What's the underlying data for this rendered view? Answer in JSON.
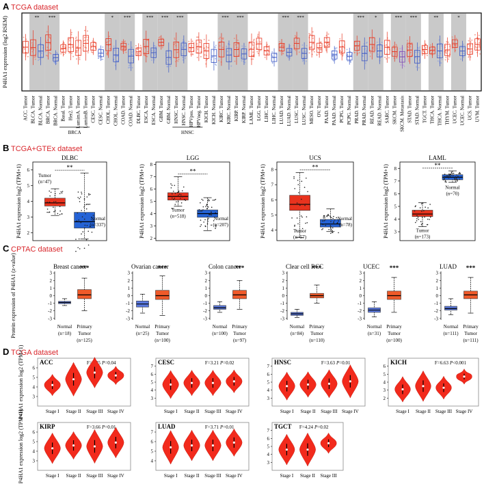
{
  "section_a": {
    "letter": "A",
    "title": "TCGA dataset",
    "ylabel": "P4HA1 expression (log2 RSEM)",
    "groups": [
      {
        "label": "ACC. Tumor",
        "color": "red"
      },
      {
        "label": "BLCA. Tumor",
        "color": "red",
        "sig": "**"
      },
      {
        "label": "BLCA. Normal",
        "color": "blue"
      },
      {
        "label": "BRCA. Tumor",
        "color": "red",
        "sig": "***"
      },
      {
        "label": "BRCA. Normal",
        "color": "blue"
      },
      {
        "label": "Basal. Tumor",
        "color": "red"
      },
      {
        "label": "Her2. Tumor",
        "color": "red"
      },
      {
        "label": "LumimA. Tumor",
        "color": "red"
      },
      {
        "label": "LumimB. Tumor",
        "color": "red"
      },
      {
        "label": "CESC. Tumor",
        "color": "red"
      },
      {
        "label": "CESC. Normal",
        "color": "blue"
      },
      {
        "label": "CHOL. Tumor",
        "color": "red",
        "sig": "*"
      },
      {
        "label": "CHOL. Normal",
        "color": "blue"
      },
      {
        "label": "COAD. Tumor",
        "color": "red",
        "sig": "***"
      },
      {
        "label": "COAD. Normal",
        "color": "blue"
      },
      {
        "label": "DLBC. Tumor",
        "color": "red"
      },
      {
        "label": "ESCA. Tumor",
        "color": "red",
        "sig": "***"
      },
      {
        "label": "ESCA. Normal",
        "color": "blue"
      },
      {
        "label": "GBM. Tumor",
        "color": "red",
        "sig": "***"
      },
      {
        "label": "GBM. Normal",
        "color": "blue"
      },
      {
        "label": "HNSC. Tumor",
        "color": "red",
        "sig": "***"
      },
      {
        "label": "HNSC. Normal",
        "color": "blue"
      },
      {
        "label": "HPVpos. Tumor",
        "color": "red"
      },
      {
        "label": "HPVneg. Tumor",
        "color": "red"
      },
      {
        "label": "KICH. Tumor",
        "color": "red"
      },
      {
        "label": "KICH. Normal",
        "color": "blue"
      },
      {
        "label": "KIRC. Tumor",
        "color": "red",
        "sig": "***"
      },
      {
        "label": "KIRC. Normal",
        "color": "blue"
      },
      {
        "label": "KIRP. Tumor",
        "color": "red",
        "sig": "***"
      },
      {
        "label": "KIRP. Normal",
        "color": "blue"
      },
      {
        "label": "LAML. Tumor",
        "color": "red"
      },
      {
        "label": "LGG. Tumor",
        "color": "red"
      },
      {
        "label": "LIHC. Tumor",
        "color": "red"
      },
      {
        "label": "LIHC. Normal",
        "color": "blue"
      },
      {
        "label": "LUAD. Tumor",
        "color": "red",
        "sig": "***"
      },
      {
        "label": "LUAD. Normal",
        "color": "blue"
      },
      {
        "label": "LUSC. Tumor",
        "color": "red",
        "sig": "***"
      },
      {
        "label": "LUSC. Normal",
        "color": "blue"
      },
      {
        "label": "MESO. Tumor",
        "color": "red"
      },
      {
        "label": "OV. Tumor",
        "color": "red"
      },
      {
        "label": "PAAD. Tumor",
        "color": "red"
      },
      {
        "label": "PAAD. Normal",
        "color": "blue"
      },
      {
        "label": "PCPG. Tumor",
        "color": "red"
      },
      {
        "label": "PCPG. Normal",
        "color": "blue"
      },
      {
        "label": "PRAD. Tumor",
        "color": "red",
        "sig": "***"
      },
      {
        "label": "PRAD. Normal",
        "color": "blue"
      },
      {
        "label": "READ. Tumor",
        "color": "red",
        "sig": "*"
      },
      {
        "label": "READ. Normal",
        "color": "blue"
      },
      {
        "label": "SARC. Tumor",
        "color": "red"
      },
      {
        "label": "SKCM. Tumor",
        "color": "red",
        "sig": "***"
      },
      {
        "label": "SKCM. Metastasis",
        "color": "purple"
      },
      {
        "label": "STAD. Tumor",
        "color": "red",
        "sig": "***"
      },
      {
        "label": "STAD. Normal",
        "color": "blue"
      },
      {
        "label": "TGCT. Tumor",
        "color": "red"
      },
      {
        "label": "THCA. Tumor",
        "color": "red",
        "sig": "**"
      },
      {
        "label": "THCA. Normal",
        "color": "blue"
      },
      {
        "label": "THYM. Tumor",
        "color": "red"
      },
      {
        "label": "UCEC. Tumor",
        "color": "red",
        "sig": "*"
      },
      {
        "label": "UCEC. Normal",
        "color": "blue"
      },
      {
        "label": "UCS. Tumor",
        "color": "red"
      },
      {
        "label": "UVM. Tumor",
        "color": "red"
      }
    ],
    "subgroup_labels": [
      "BRCA",
      "HNSC"
    ]
  },
  "section_b": {
    "letter": "B",
    "title": "TCGA+GTEx dataset",
    "ylabel": "P4HA1 expression log2 (TPM+1)",
    "panels": [
      {
        "title": "DLBC",
        "ymin": 1.5,
        "ymax": 6.5,
        "ticks": [
          2,
          3,
          4,
          5,
          6
        ],
        "sig": "**",
        "tumor": {
          "label": "Tumor",
          "n": "(n=47)",
          "median": 3.9,
          "q1": 3.7,
          "q3": 4.2,
          "lo": 3.1,
          "hi": 4.8
        },
        "normal": {
          "label": "Normal",
          "n": "(n=337)",
          "median": 2.7,
          "q1": 2.3,
          "q3": 3.3,
          "lo": 1.6,
          "hi": 5.8
        }
      },
      {
        "title": "LGG",
        "ymin": 1.8,
        "ymax": 8.2,
        "ticks": [
          2,
          3,
          4,
          5,
          6,
          7,
          8
        ],
        "sig": "**",
        "tumor": {
          "label": "Tumor",
          "n": "(n=518)",
          "median": 5.4,
          "q1": 5.1,
          "q3": 5.7,
          "lo": 4.6,
          "hi": 7.0
        },
        "normal": {
          "label": "Normal",
          "n": "(n=207)",
          "median": 4.0,
          "q1": 3.7,
          "q3": 4.3,
          "lo": 2.6,
          "hi": 5.3
        }
      },
      {
        "title": "UCS",
        "ymin": 3.3,
        "ymax": 8.5,
        "ticks": [
          4,
          5,
          6,
          7,
          8
        ],
        "sig": "**",
        "tumor": {
          "label": "Tumor",
          "n": "(n=57)",
          "median": 5.7,
          "q1": 5.3,
          "q3": 6.3,
          "lo": 3.5,
          "hi": 7.8
        },
        "normal": {
          "label": "Normal",
          "n": "(n=78)",
          "median": 4.4,
          "q1": 4.2,
          "q3": 4.7,
          "lo": 3.9,
          "hi": 5.4
        }
      },
      {
        "title": "LAML",
        "ymin": 2.3,
        "ymax": 8.5,
        "ticks": [
          3,
          4,
          5,
          6,
          7,
          8
        ],
        "sig": "**",
        "tumor": {
          "label": "Tumor",
          "n": "(n=173)",
          "median": 4.4,
          "q1": 4.2,
          "q3": 4.7,
          "lo": 3.4,
          "hi": 5.3
        },
        "normal": {
          "label": "Normal",
          "n": "(n=70)",
          "median": 7.3,
          "q1": 7.1,
          "q3": 7.5,
          "lo": 6.9,
          "hi": 7.8
        }
      }
    ]
  },
  "section_c": {
    "letter": "C",
    "title": "CPTAC dataset",
    "ylabel": "Protein expression of P4HA1 (z-value)",
    "ymin": -3.2,
    "ymax": 3.2,
    "ticks": [
      -3,
      -2,
      -1,
      0,
      1,
      2,
      3
    ],
    "panels": [
      {
        "title": "Breast cancer",
        "sig": "***",
        "normal": {
          "label": "Normal",
          "n": "(n=18)",
          "median": -0.9,
          "q1": -1.05,
          "q3": -0.75,
          "lo": -1.3,
          "hi": -0.4
        },
        "tumor": {
          "label": "Primary",
          "label2": "Tumor",
          "n": "(n=125)",
          "median": 0.1,
          "q1": -0.4,
          "q3": 0.8,
          "lo": -2.0,
          "hi": 2.3
        }
      },
      {
        "title": "Ovarian cancer",
        "sig": "***",
        "normal": {
          "label": "Normal",
          "n": "(n=25)",
          "median": -1.1,
          "q1": -1.5,
          "q3": -0.7,
          "lo": -2.3,
          "hi": 0.2
        },
        "tumor": {
          "label": "Primary",
          "label2": "Tumor",
          "n": "(n=100)",
          "median": 0.0,
          "q1": -0.5,
          "q3": 0.7,
          "lo": -2.6,
          "hi": 2.6
        }
      },
      {
        "title": "Colon cancer",
        "sig": "***",
        "normal": {
          "label": "Normal",
          "n": "(n=100)",
          "median": -1.6,
          "q1": -1.8,
          "q3": -1.3,
          "lo": -2.2,
          "hi": -0.8
        },
        "tumor": {
          "label": "Primary",
          "label2": "Tumor",
          "n": "(n=97)",
          "median": 0.1,
          "q1": -0.4,
          "q3": 0.7,
          "lo": -1.8,
          "hi": 2.0
        }
      },
      {
        "title": "Clear cell RCC",
        "sig": "***",
        "normal": {
          "label": "Normal",
          "n": "(n=84)",
          "median": -2.4,
          "q1": -2.6,
          "q3": -2.2,
          "lo": -2.9,
          "hi": -1.8
        },
        "tumor": {
          "label": "Primary",
          "label2": "Tumor",
          "n": "(n=110)",
          "median": 0.0,
          "q1": -0.3,
          "q3": 0.3,
          "lo": -1.0,
          "hi": 1.4
        }
      },
      {
        "title": "UCEC",
        "sig": "***",
        "normal": {
          "label": "Normal",
          "n": "(n=31)",
          "median": -1.9,
          "q1": -2.2,
          "q3": -1.6,
          "lo": -2.8,
          "hi": -0.8
        },
        "tumor": {
          "label": "Primary",
          "label2": "Tumor",
          "n": "(n=100)",
          "median": 0.0,
          "q1": -0.5,
          "q3": 0.6,
          "lo": -2.2,
          "hi": 2.4
        }
      },
      {
        "title": "LUAD",
        "sig": "***",
        "normal": {
          "label": "Normal",
          "n": "(n=111)",
          "median": -1.7,
          "q1": -1.9,
          "q3": -1.4,
          "lo": -2.5,
          "hi": -0.4
        },
        "tumor": {
          "label": "Primary",
          "label2": "Tumor",
          "n": "(n=111)",
          "median": 0.1,
          "q1": -0.4,
          "q3": 0.6,
          "lo": -2.3,
          "hi": 2.4
        }
      }
    ]
  },
  "section_d": {
    "letter": "D",
    "title": "TCGA dataset",
    "ylabel": "P4HA1 expression log2 (TPM+1)",
    "panels": [
      {
        "name": "ACC",
        "F": "F=2.85",
        "P": "=0.04",
        "ymin": 2,
        "ymax": 7,
        "ticks": [
          3,
          4,
          5,
          6
        ],
        "stages": [
          "Stage I",
          "Stage II",
          "Stage III",
          "Stage IV"
        ],
        "medians": [
          4.2,
          4.8,
          5.5,
          5.2
        ],
        "spread": [
          0.7,
          1.1,
          1.0,
          0.6
        ]
      },
      {
        "name": "CESC",
        "F": "F=3.21",
        "P": "=0.02",
        "ymin": 2,
        "ymax": 8,
        "ticks": [
          3,
          4,
          5,
          6,
          7
        ],
        "stages": [
          "Stage I",
          "Stage II",
          "Stage III",
          "Stage IV"
        ],
        "medians": [
          4.7,
          4.9,
          4.9,
          5.1
        ],
        "spread": [
          1.1,
          1.0,
          1.0,
          0.9
        ]
      },
      {
        "name": "HNSC",
        "F": "F=3.63",
        "P": "=0.01",
        "ymin": 2,
        "ymax": 8,
        "ticks": [
          3,
          4,
          5,
          6,
          7
        ],
        "stages": [
          "Stage I",
          "Stage II",
          "Stage III",
          "Stage IV"
        ],
        "medians": [
          4.5,
          4.7,
          4.8,
          5.1
        ],
        "spread": [
          1.1,
          1.0,
          1.1,
          1.3
        ]
      },
      {
        "name": "KICH",
        "F": "F=6.63",
        "P": "<0.001",
        "ymin": 1,
        "ymax": 7,
        "ticks": [
          2,
          3,
          4,
          5,
          6
        ],
        "stages": [
          "Stage I",
          "Stage II",
          "Stage III",
          "Stage IV"
        ],
        "medians": [
          3.1,
          3.5,
          3.3,
          4.7
        ],
        "spread": [
          1.0,
          1.2,
          0.9,
          0.6
        ]
      },
      {
        "name": "KIRP",
        "F": "F=3.66",
        "P": "=0.01",
        "ymin": 2,
        "ymax": 7,
        "ticks": [
          3,
          4,
          5,
          6
        ],
        "stages": [
          "Stage I",
          "Stage II",
          "Stage III",
          "Stage IV"
        ],
        "medians": [
          4.3,
          4.6,
          4.5,
          4.9
        ],
        "spread": [
          1.0,
          0.9,
          1.1,
          1.0
        ]
      },
      {
        "name": "LUAD",
        "F": "F=3.71",
        "P": "=0.01",
        "ymin": 3,
        "ymax": 8,
        "ticks": [
          4,
          5,
          6,
          7
        ],
        "stages": [
          "Stage I",
          "Stage II",
          "Stage III",
          "Stage IV"
        ],
        "medians": [
          5.4,
          5.6,
          5.6,
          5.9
        ],
        "spread": [
          1.1,
          1.0,
          1.0,
          0.9
        ]
      },
      {
        "name": "TGCT",
        "F": "F=4.24",
        "P": "=0.02",
        "ymin": 2,
        "ymax": 8,
        "ticks": [
          3,
          4,
          5,
          6,
          7
        ],
        "stages": [
          "Stage I",
          "Stage II",
          "Stage III"
        ],
        "medians": [
          4.6,
          4.6,
          5.4
        ],
        "spread": [
          1.2,
          1.3,
          0.8
        ]
      }
    ]
  },
  "colors": {
    "tumor": "#e8331e",
    "normal": "#3a56c4",
    "meta": "#7a42b5",
    "title": "#d9262b",
    "tumorDot": "#f07a66",
    "normalDot": "#8a9fe0",
    "grey": "#c9c9c9"
  }
}
